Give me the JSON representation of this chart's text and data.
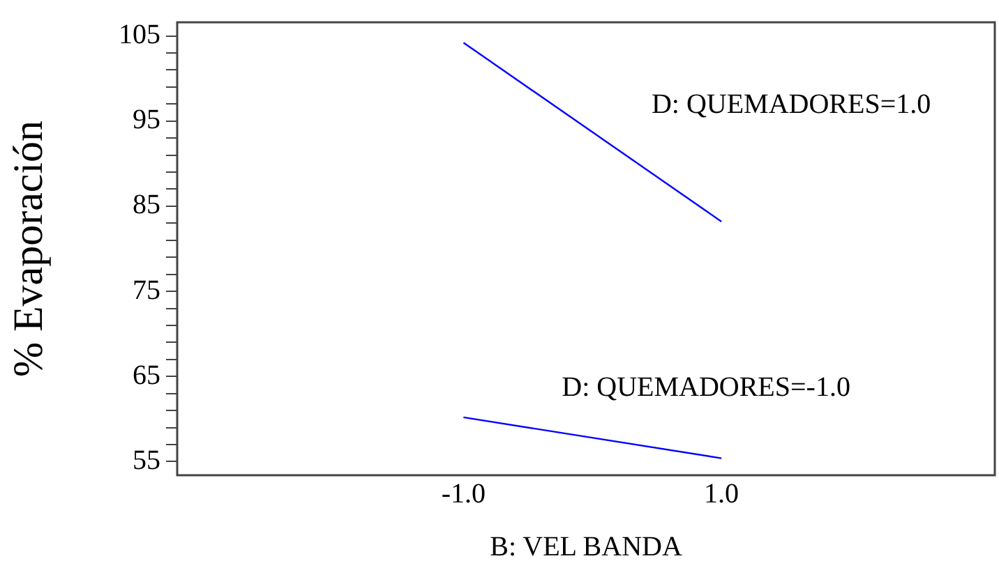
{
  "chart_data": {
    "type": "line",
    "xlabel": "B: VEL BANDA",
    "ylabel": "% Evaporación",
    "xlim": [
      -3.22,
      3.12
    ],
    "xticks": [
      {
        "value": -1,
        "label": "-1.0"
      },
      {
        "value": 1,
        "label": "1.0"
      }
    ],
    "ylim": [
      53.4,
      106.6
    ],
    "yticks": [
      55,
      {
        "value": 57,
        "label": null
      },
      {
        "value": 59,
        "label": null
      },
      {
        "value": 61,
        "label": null
      },
      {
        "value": 63,
        "label": null
      },
      65,
      {
        "value": 67,
        "label": null
      },
      {
        "value": 69,
        "label": null
      },
      {
        "value": 71,
        "label": null
      },
      {
        "value": 73,
        "label": null
      },
      75,
      {
        "value": 77,
        "label": null
      },
      {
        "value": 79,
        "label": null
      },
      {
        "value": 81,
        "label": null
      },
      {
        "value": 83,
        "label": null
      },
      85,
      {
        "value": 87,
        "label": null
      },
      {
        "value": 89,
        "label": null
      },
      {
        "value": 91,
        "label": null
      },
      {
        "value": 93,
        "label": null
      },
      95,
      {
        "value": 97,
        "label": null
      },
      {
        "value": 99,
        "label": null
      },
      {
        "value": 101,
        "label": null
      },
      {
        "value": 103,
        "label": null
      },
      105
    ],
    "x": [
      -1,
      1
    ],
    "series": [
      {
        "color": "#0000ff",
        "values": [
          104.2,
          83.2
        ]
      },
      {
        "color": "#0000ff",
        "values": [
          60.2,
          55.4
        ]
      }
    ],
    "annotations": [
      "D: QUEMADORES=1.0",
      "D: QUEMADORES=-1.0"
    ],
    "grid": false,
    "legend": false,
    "marker": "none",
    "line_style": "solid"
  }
}
